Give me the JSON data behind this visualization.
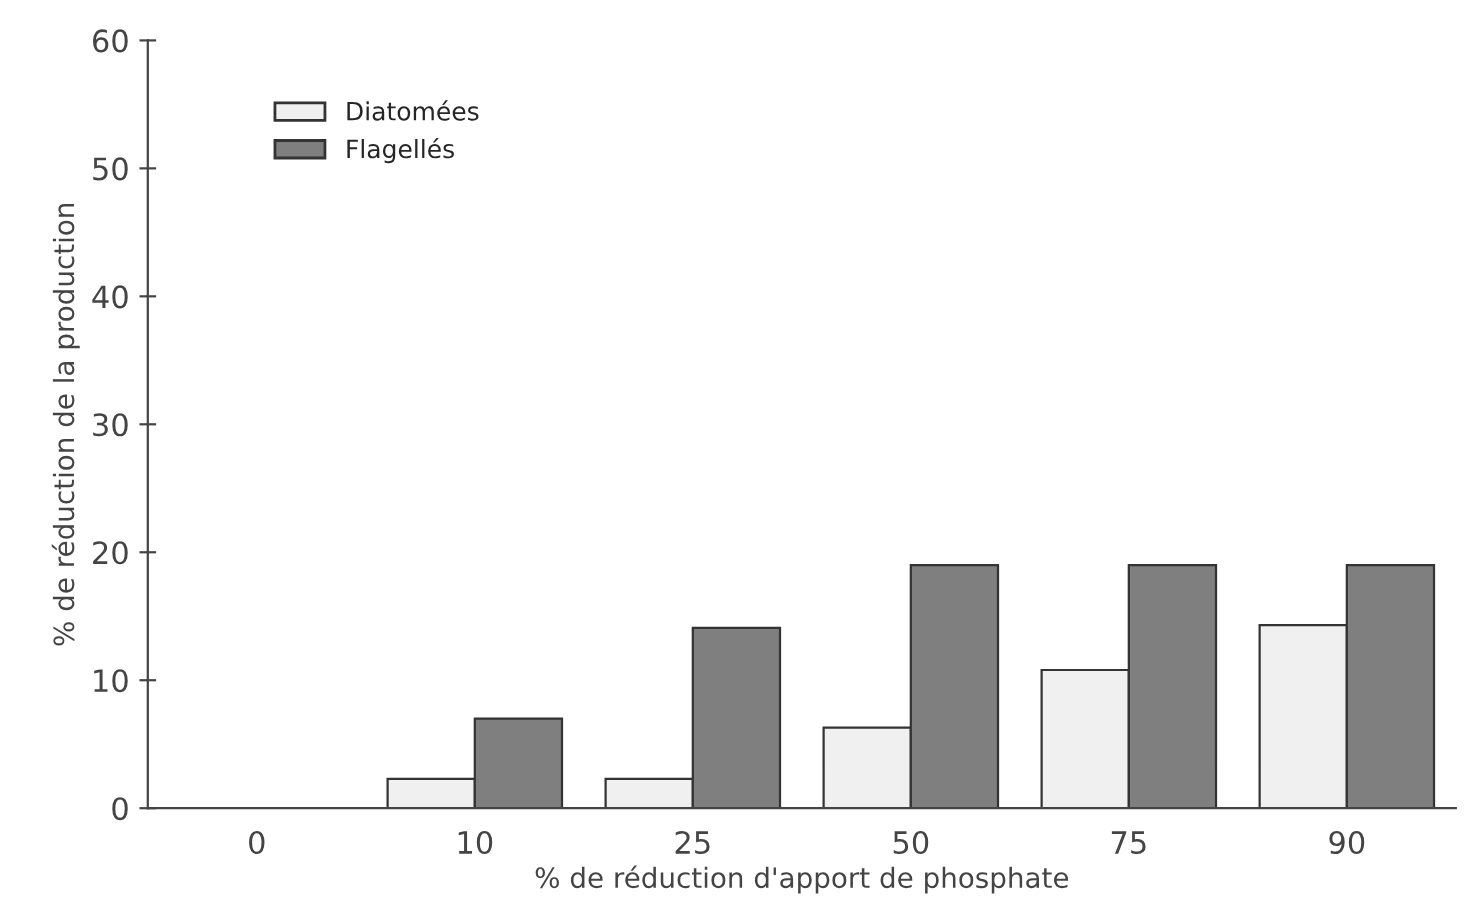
{
  "chart_data": {
    "type": "bar",
    "xlabel": "% de réduction d'apport de phosphate",
    "ylabel": "% de réduction de la production",
    "categories": [
      "0",
      "10",
      "25",
      "50",
      "75",
      "90"
    ],
    "series": [
      {
        "name": "Diatomées",
        "color": "#f0f0f0",
        "values": [
          0,
          2.3,
          2.3,
          6.3,
          10.8,
          14.3
        ]
      },
      {
        "name": "Flagellés",
        "color": "#7f7f7f",
        "values": [
          0,
          7,
          14.1,
          19,
          19,
          19
        ]
      }
    ],
    "ylim": [
      0,
      60
    ],
    "yticks": [
      0,
      10,
      20,
      30,
      40,
      50,
      60
    ],
    "grid": false,
    "legend": "top left"
  }
}
